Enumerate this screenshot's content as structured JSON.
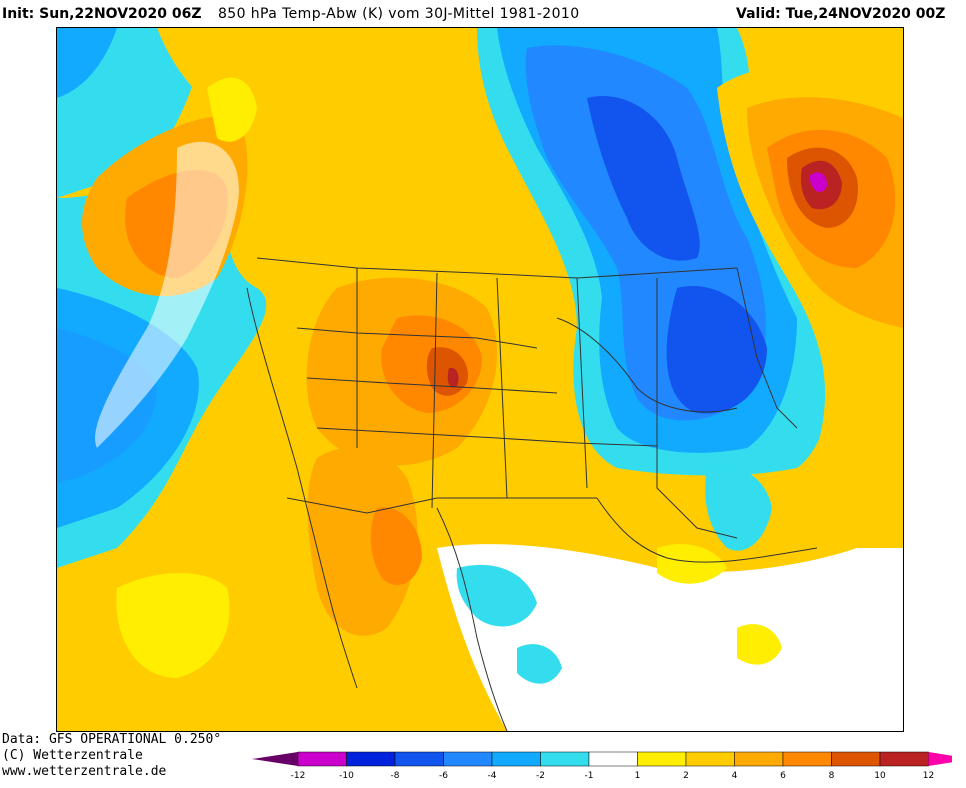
{
  "header": {
    "init": "Init: Sun,22NOV2020 06Z",
    "title": "850 hPa Temp-Abw (K) vom 30J-Mittel 1981-2010",
    "valid": "Valid: Tue,24NOV2020 00Z"
  },
  "footer": {
    "data_source": "Data: GFS OPERATIONAL 0.250°",
    "copyright": "(C) Wetterzentrale",
    "url": "www.wetterzentrale.de"
  },
  "legend": {
    "labels": [
      "-12",
      "-10",
      "-8",
      "-6",
      "-4",
      "-2",
      "-1",
      "1",
      "2",
      "4",
      "6",
      "8",
      "10",
      "12"
    ],
    "colors": [
      "#cc00cc",
      "#0022dd",
      "#1155ee",
      "#2288ff",
      "#11aaff",
      "#33ddee",
      "#ffffff",
      "#ffee00",
      "#ffcc00",
      "#ffaa00",
      "#ff8800",
      "#dd5500",
      "#bb2222"
    ],
    "low_arrow_color": "#660066",
    "high_arrow_color": "#ff00aa"
  },
  "colors": {
    "background_warm": "#ffcc00",
    "frame": "#000000",
    "contour": "#333333"
  }
}
